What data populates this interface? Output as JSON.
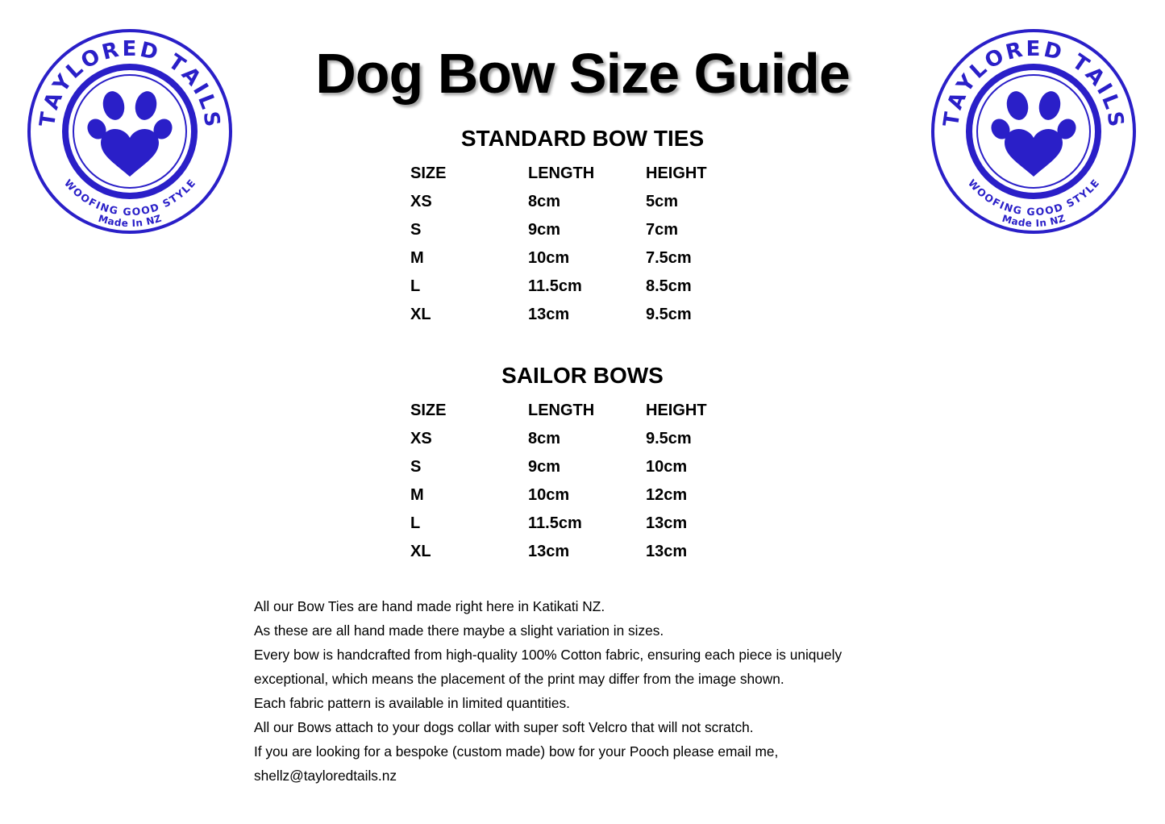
{
  "title": "Dog Bow Size Guide",
  "logo": {
    "brand": "TAYLORED TAILS",
    "tagline": "WOOFING GOOD STYLE",
    "origin": "Made In NZ",
    "color": "#2a1fc8"
  },
  "standard": {
    "heading": "STANDARD BOW TIES",
    "columns": [
      "SIZE",
      "LENGTH",
      "HEIGHT"
    ],
    "rows": [
      [
        "XS",
        "8cm",
        "5cm"
      ],
      [
        "S",
        "9cm",
        "7cm"
      ],
      [
        "M",
        "10cm",
        "7.5cm"
      ],
      [
        "L",
        "11.5cm",
        "8.5cm"
      ],
      [
        "XL",
        "13cm",
        "9.5cm"
      ]
    ]
  },
  "sailor": {
    "heading": "SAILOR BOWS",
    "columns": [
      "SIZE",
      "LENGTH",
      "HEIGHT"
    ],
    "rows": [
      [
        "XS",
        "8cm",
        "9.5cm"
      ],
      [
        "S",
        "9cm",
        "10cm"
      ],
      [
        "M",
        "10cm",
        "12cm"
      ],
      [
        "L",
        "11.5cm",
        "13cm"
      ],
      [
        "XL",
        "13cm",
        "13cm"
      ]
    ]
  },
  "notes": [
    "All our Bow Ties are hand made right here in Katikati NZ.",
    "As these are all hand made there maybe a slight variation in sizes.",
    "Every bow is handcrafted from high-quality 100% Cotton fabric, ensuring each piece is uniquely",
    "exceptional, which means the placement of the print may differ from the image shown.",
    "Each fabric pattern is available in limited quantities.",
    "All our Bows attach to your dogs collar with super soft Velcro that will not scratch.",
    "If you are looking for a bespoke (custom made) bow for your Pooch please email me,",
    "shellz@tayloredtails.nz"
  ]
}
